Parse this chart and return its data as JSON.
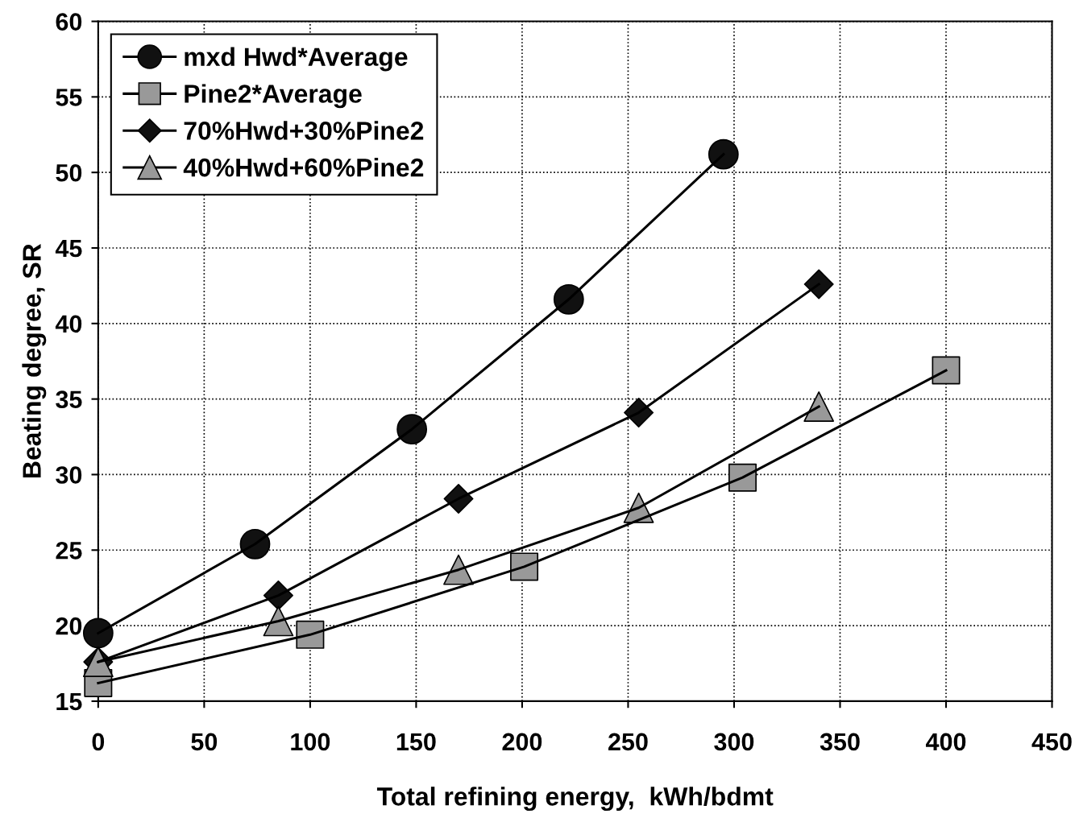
{
  "chart_data": {
    "type": "line",
    "xlabel": "Total refining energy,  kWh/bdmt",
    "ylabel": "Beating degree, SR",
    "xlim": [
      0,
      450
    ],
    "xticks": [
      0,
      50,
      100,
      150,
      200,
      250,
      300,
      350,
      400,
      450
    ],
    "ylim": [
      15,
      60
    ],
    "yticks": [
      15,
      20,
      25,
      30,
      35,
      40,
      45,
      50,
      55,
      60
    ],
    "grid": true,
    "legend": "top left",
    "line_style": "solid",
    "series": [
      {
        "name": "mxd Hwd*Average",
        "color": "#111111",
        "marker": "circle",
        "x": [
          0,
          74,
          148,
          222,
          295
        ],
        "values": [
          19.5,
          25.4,
          33.0,
          41.6,
          51.2
        ]
      },
      {
        "name": "Pine2*Average",
        "color": "#999999",
        "marker": "square",
        "x": [
          0,
          100,
          201,
          304,
          400
        ],
        "values": [
          16.2,
          19.4,
          23.9,
          29.8,
          36.9
        ]
      },
      {
        "name": "70%Hwd+30%Pine2",
        "color": "#111111",
        "marker": "diamond",
        "x": [
          0,
          85,
          170,
          255,
          340
        ],
        "values": [
          17.6,
          22.0,
          28.4,
          34.1,
          42.6
        ]
      },
      {
        "name": "40%Hwd+60%Pine2",
        "color": "#999999",
        "marker": "triangle",
        "x": [
          0,
          85,
          170,
          255,
          340
        ],
        "values": [
          17.6,
          20.3,
          23.7,
          27.8,
          34.5
        ]
      }
    ]
  }
}
